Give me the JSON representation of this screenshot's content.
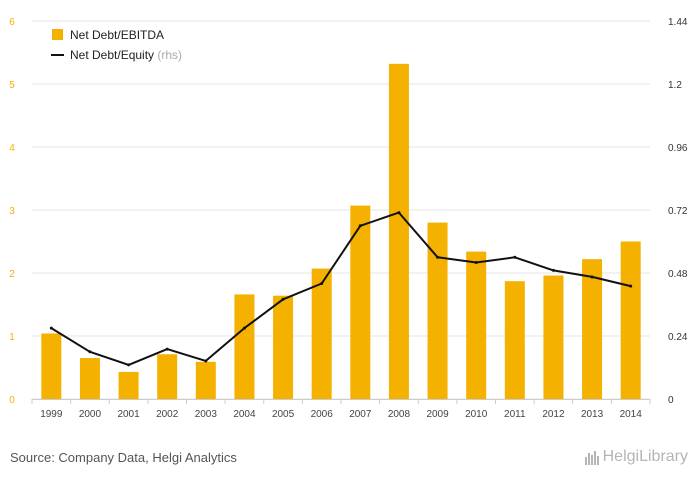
{
  "chart_data": {
    "type": "bar",
    "categories": [
      "1999",
      "2000",
      "2001",
      "2002",
      "2003",
      "2004",
      "2005",
      "2006",
      "2007",
      "2008",
      "2009",
      "2010",
      "2011",
      "2012",
      "2013",
      "2014"
    ],
    "series": [
      {
        "name": "Net Debt/EBITDA",
        "type": "bar",
        "axis": "left",
        "color": "#f5b100",
        "values": [
          1.04,
          0.65,
          0.43,
          0.71,
          0.59,
          1.66,
          1.64,
          2.07,
          3.07,
          5.32,
          2.8,
          2.34,
          1.87,
          1.96,
          2.22,
          2.5
        ]
      },
      {
        "name": "Net Debt/Equity",
        "name_suffix": "(rhs)",
        "type": "line",
        "axis": "right",
        "color": "#111111",
        "values": [
          0.27,
          0.18,
          0.13,
          0.19,
          0.145,
          0.27,
          0.38,
          0.44,
          0.66,
          0.71,
          0.54,
          0.52,
          0.54,
          0.49,
          0.465,
          0.43
        ]
      }
    ],
    "y_left": {
      "ylim": [
        0,
        6
      ],
      "ticks": [
        "0",
        "1",
        "2",
        "3",
        "4",
        "5",
        "6"
      ],
      "tick_values": [
        0,
        1,
        2,
        3,
        4,
        5,
        6
      ],
      "tick_color": "#f5b100"
    },
    "y_right": {
      "ylim": [
        0,
        1.44
      ],
      "ticks": [
        "0",
        "0.24",
        "0.48",
        "0.72",
        "0.96",
        "1.2",
        "1.44"
      ],
      "tick_values": [
        0,
        0.24,
        0.48,
        0.72,
        0.96,
        1.2,
        1.44
      ]
    },
    "grid": true,
    "legend_position": "top-left"
  },
  "footer": {
    "source": "Source: Company Data, Helgi Analytics",
    "brand": "HelgiLibrary"
  }
}
